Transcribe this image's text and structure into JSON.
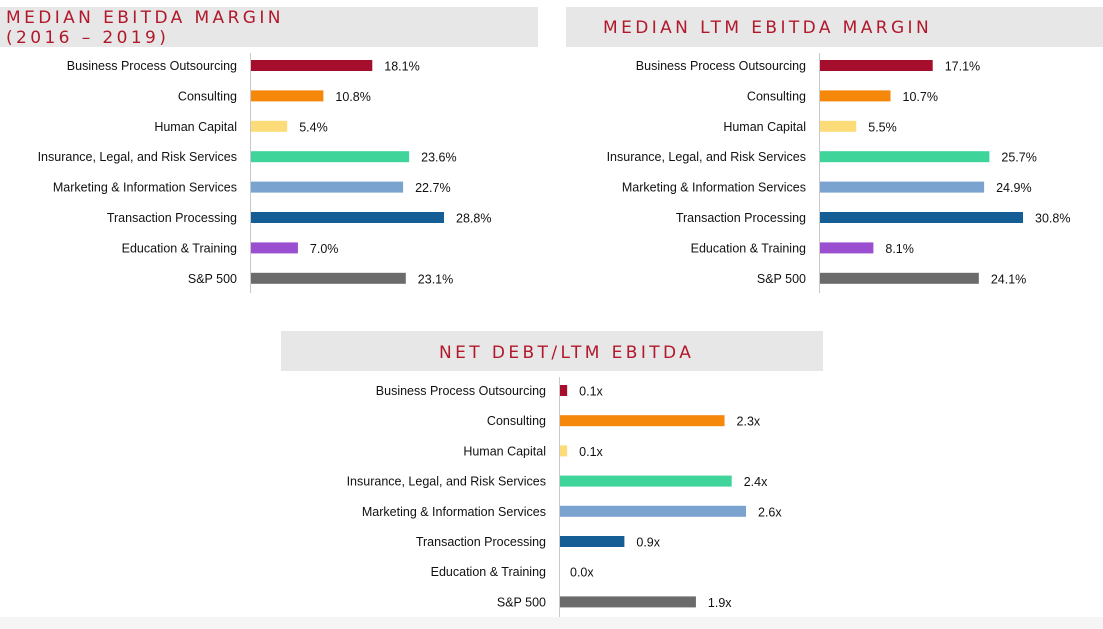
{
  "colors": {
    "title": "#b2182b",
    "header_band": "#e7e7e7",
    "series": [
      "#a50f2d",
      "#f5870a",
      "#fbdc78",
      "#3fd49a",
      "#7aa3cf",
      "#155e95",
      "#9a4fd0",
      "#6b6b6b"
    ]
  },
  "chart_data": [
    {
      "type": "bar",
      "orientation": "horizontal",
      "title_lines": [
        "MEDIAN EBITDA MARGIN",
        "(2016 – 2019)"
      ],
      "categories": [
        "Business Process Outsourcing",
        "Consulting",
        "Human Capital",
        "Insurance, Legal, and Risk Services",
        "Marketing & Information Services",
        "Transaction Processing",
        "Education & Training",
        "S&P 500"
      ],
      "values": [
        18.1,
        10.8,
        5.4,
        23.6,
        22.7,
        28.8,
        7.0,
        23.1
      ],
      "value_labels": [
        "18.1%",
        "10.8%",
        "5.4%",
        "23.6%",
        "22.7%",
        "28.8%",
        "7.0%",
        "23.1%"
      ],
      "xlim": [
        0,
        35
      ],
      "grid": false,
      "legend": "none"
    },
    {
      "type": "bar",
      "orientation": "horizontal",
      "title_lines": [
        "MEDIAN LTM EBITDA MARGIN"
      ],
      "categories": [
        "Business Process Outsourcing",
        "Consulting",
        "Human Capital",
        "Insurance, Legal, and Risk Services",
        "Marketing & Information Services",
        "Transaction Processing",
        "Education & Training",
        "S&P 500"
      ],
      "values": [
        17.1,
        10.7,
        5.5,
        25.7,
        24.9,
        30.8,
        8.1,
        24.1
      ],
      "value_labels": [
        "17.1%",
        "10.7%",
        "5.5%",
        "25.7%",
        "24.9%",
        "30.8%",
        "8.1%",
        "24.1%"
      ],
      "xlim": [
        0,
        35
      ],
      "grid": false,
      "legend": "none"
    },
    {
      "type": "bar",
      "orientation": "horizontal",
      "title_lines": [
        "NET DEBT/LTM EBITDA"
      ],
      "categories": [
        "Business Process Outsourcing",
        "Consulting",
        "Human Capital",
        "Insurance, Legal, and Risk Services",
        "Marketing & Information Services",
        "Transaction Processing",
        "Education & Training",
        "S&P 500"
      ],
      "values": [
        0.1,
        2.3,
        0.1,
        2.4,
        2.6,
        0.9,
        0.0,
        1.9
      ],
      "value_labels": [
        "0.1x",
        "2.3x",
        "0.1x",
        "2.4x",
        "2.6x",
        "0.9x",
        "0.0x",
        "1.9x"
      ],
      "xlim": [
        0,
        3.5
      ],
      "grid": false,
      "legend": "none"
    }
  ]
}
